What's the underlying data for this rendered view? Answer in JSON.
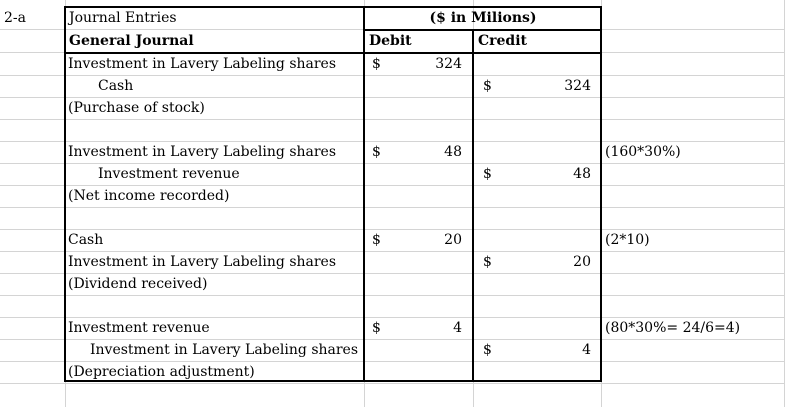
{
  "label": "2-a",
  "header": {
    "journal_entries": "Journal Entries",
    "unit": "($ in Milions)",
    "general_journal": "General Journal",
    "debit": "Debit",
    "credit": "Credit"
  },
  "rows": [
    {
      "account": "Investment in Lavery Labeling shares",
      "indent": 0,
      "debit_sign": "$",
      "debit": "324",
      "credit_sign": "",
      "credit": "",
      "note": ""
    },
    {
      "account": "Cash",
      "indent": 30,
      "debit_sign": "",
      "debit": "",
      "credit_sign": "$",
      "credit": "324",
      "note": ""
    },
    {
      "account": "(Purchase of stock)",
      "indent": 0,
      "debit_sign": "",
      "debit": "",
      "credit_sign": "",
      "credit": "",
      "note": ""
    },
    {
      "account": "",
      "indent": 0,
      "debit_sign": "",
      "debit": "",
      "credit_sign": "",
      "credit": "",
      "note": ""
    },
    {
      "account": "Investment in Lavery Labeling shares",
      "indent": 0,
      "debit_sign": "$",
      "debit": "48",
      "credit_sign": "",
      "credit": "",
      "note": "(160*30%)"
    },
    {
      "account": "Investment revenue",
      "indent": 30,
      "debit_sign": "",
      "debit": "",
      "credit_sign": "$",
      "credit": "48",
      "note": ""
    },
    {
      "account": "(Net income recorded)",
      "indent": 0,
      "debit_sign": "",
      "debit": "",
      "credit_sign": "",
      "credit": "",
      "note": ""
    },
    {
      "account": "",
      "indent": 0,
      "debit_sign": "",
      "debit": "",
      "credit_sign": "",
      "credit": "",
      "note": ""
    },
    {
      "account": "Cash",
      "indent": 0,
      "debit_sign": "$",
      "debit": "20",
      "credit_sign": "",
      "credit": "",
      "note": "(2*10)"
    },
    {
      "account": "Investment in Lavery Labeling shares",
      "indent": 0,
      "debit_sign": "",
      "debit": "",
      "credit_sign": "$",
      "credit": "20",
      "note": ""
    },
    {
      "account": "(Dividend received)",
      "indent": 0,
      "debit_sign": "",
      "debit": "",
      "credit_sign": "",
      "credit": "",
      "note": ""
    },
    {
      "account": "",
      "indent": 0,
      "debit_sign": "",
      "debit": "",
      "credit_sign": "",
      "credit": "",
      "note": ""
    },
    {
      "account": "Investment revenue",
      "indent": 0,
      "debit_sign": "$",
      "debit": "4",
      "credit_sign": "",
      "credit": "",
      "note": "(80*30%= 24/6=4)"
    },
    {
      "account": "Investment in Lavery Labeling shares",
      "indent": 22,
      "debit_sign": "",
      "debit": "",
      "credit_sign": "$",
      "credit": "4",
      "note": ""
    },
    {
      "account": "(Depreciation adjustment)",
      "indent": 0,
      "debit_sign": "",
      "debit": "",
      "credit_sign": "",
      "credit": "",
      "note": ""
    }
  ]
}
